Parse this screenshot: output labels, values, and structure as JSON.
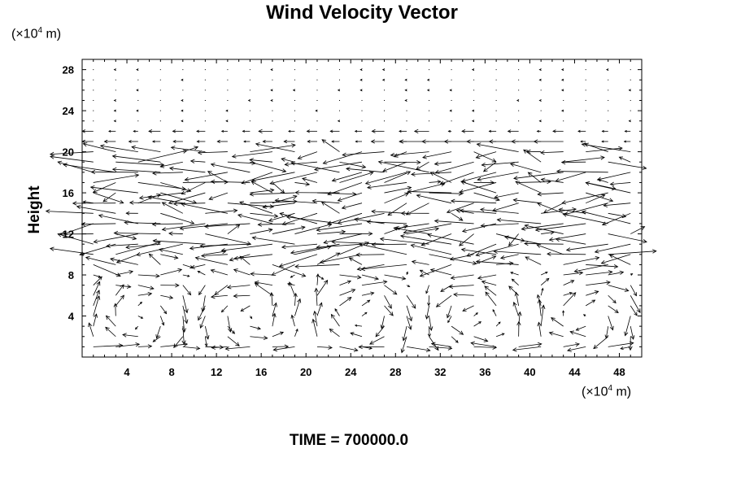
{
  "chart_data": {
    "type": "vector-field",
    "title": "Wind Velocity Vector",
    "xlabel": "",
    "ylabel": "Height",
    "x_unit_prefix": "(×10",
    "x_unit_exp": "4",
    "x_unit_suffix": " m)",
    "y_unit_prefix": "(×10",
    "y_unit_exp": "4",
    "y_unit_suffix": " m)",
    "xlim": [
      0,
      50
    ],
    "ylim": [
      0,
      29
    ],
    "xticks": [
      4,
      8,
      12,
      16,
      20,
      24,
      28,
      32,
      36,
      40,
      44,
      48
    ],
    "yticks": [
      4,
      8,
      12,
      16,
      20,
      24,
      28
    ],
    "grid_dx": 2,
    "grid_dy": 1,
    "layers": [
      {
        "y": [
          0,
          8
        ],
        "regime": "convective cells",
        "max_speed": 3.0
      },
      {
        "y": [
          9,
          20
        ],
        "regime": "strong mostly-westerly shear flow",
        "max_speed": 5.5
      },
      {
        "y": [
          21,
          22
        ],
        "regime": "weak flow",
        "max_speed": 1.5
      },
      {
        "y": [
          23,
          29
        ],
        "regime": "nearly calm",
        "max_speed": 0.3
      }
    ]
  },
  "footer": {
    "time_text": "TIME = 700000.0"
  }
}
